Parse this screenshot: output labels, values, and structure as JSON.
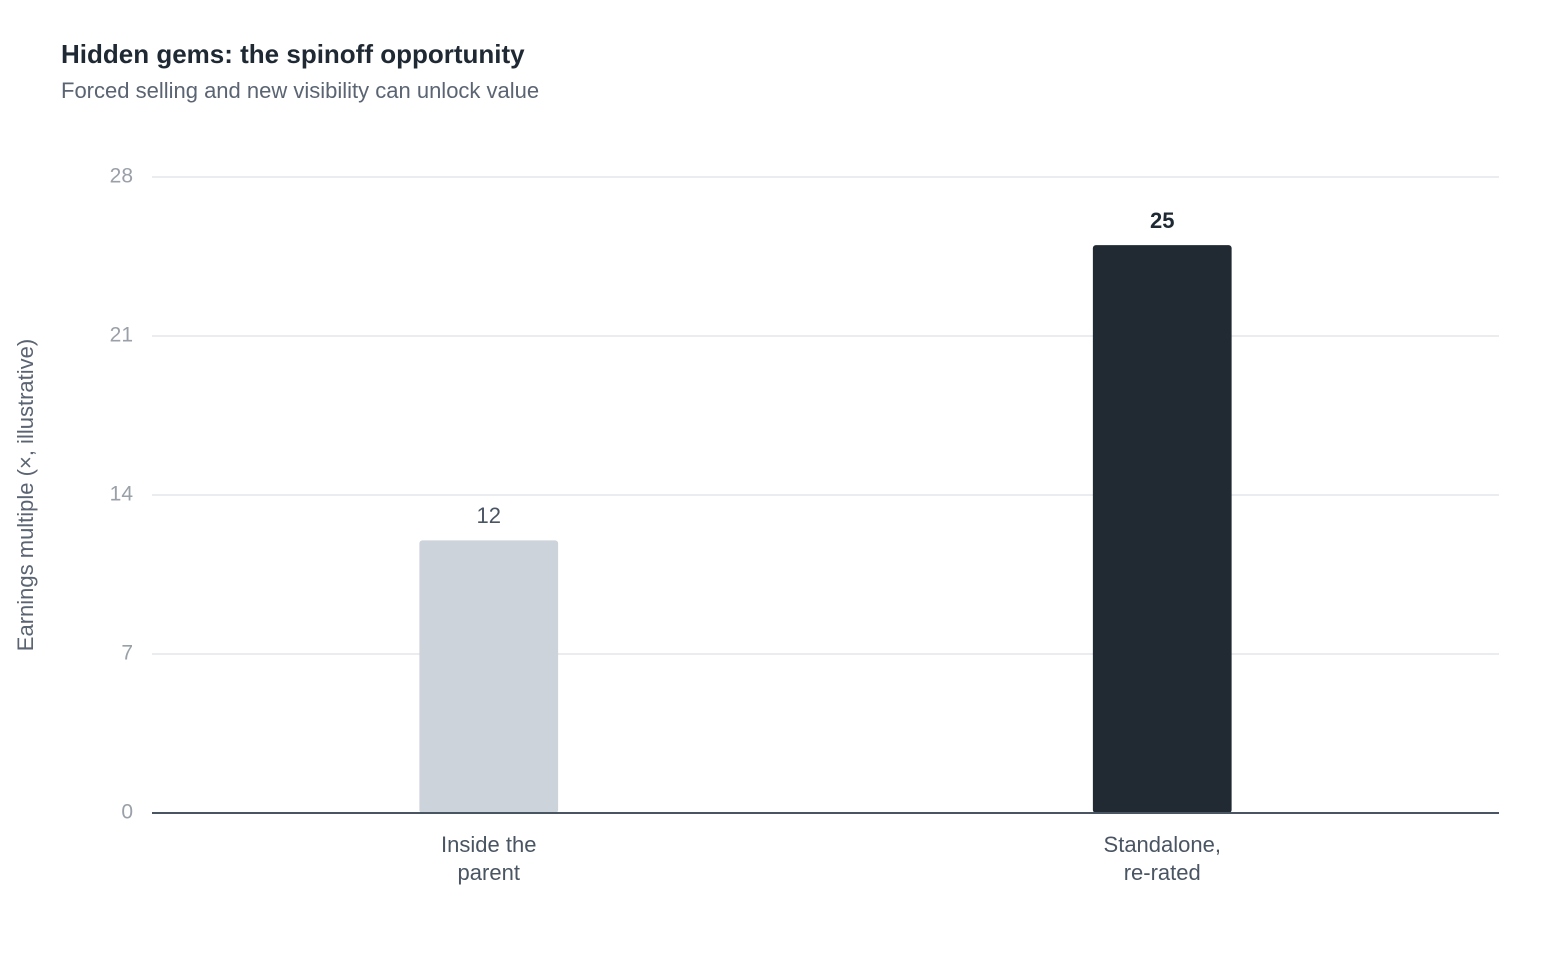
{
  "chart_data": {
    "type": "bar",
    "title": "Hidden gems: the spinoff opportunity",
    "subtitle": "Forced selling and new visibility can unlock value",
    "y_label": "Earnings multiple (×, illustrative)",
    "categories": [
      [
        "Inside the",
        "parent"
      ],
      [
        "Standalone,",
        "re-rated"
      ]
    ],
    "values": [
      12,
      25
    ],
    "colors": [
      "#cdd3da",
      "#212a33"
    ],
    "ylim": [
      0,
      28
    ],
    "yticks": [
      0,
      7,
      14,
      21,
      28
    ],
    "grid": true
  }
}
